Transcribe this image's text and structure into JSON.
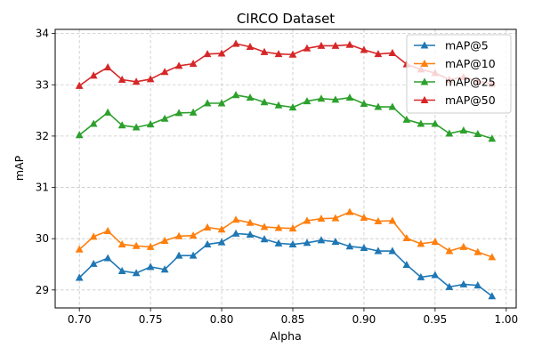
{
  "chart_data": {
    "type": "line",
    "title": "CIRCO Dataset",
    "xlabel": "Alpha",
    "ylabel": "mAP",
    "xlim": [
      0.683,
      1.007
    ],
    "ylim": [
      28.65,
      34.08
    ],
    "xticks": [
      0.7,
      0.75,
      0.8,
      0.85,
      0.9,
      0.95,
      1.0
    ],
    "xtick_labels": [
      "0.70",
      "0.75",
      "0.80",
      "0.85",
      "0.90",
      "0.95",
      "1.00"
    ],
    "yticks": [
      29,
      30,
      31,
      32,
      33,
      34
    ],
    "ytick_labels": [
      "29",
      "30",
      "31",
      "32",
      "33",
      "34"
    ],
    "grid": true,
    "legend_position": "top-right",
    "marker": "triangle",
    "x": [
      0.7,
      0.71,
      0.72,
      0.73,
      0.74,
      0.75,
      0.76,
      0.77,
      0.78,
      0.79,
      0.8,
      0.81,
      0.82,
      0.83,
      0.84,
      0.85,
      0.86,
      0.87,
      0.88,
      0.89,
      0.9,
      0.91,
      0.92,
      0.93,
      0.94,
      0.95,
      0.96,
      0.97,
      0.98,
      0.99
    ],
    "series": [
      {
        "name": "mAP@5",
        "color": "#1f77b4",
        "values": [
          29.24,
          29.51,
          29.62,
          29.37,
          29.33,
          29.45,
          29.4,
          29.67,
          29.67,
          29.89,
          29.93,
          30.1,
          30.08,
          29.99,
          29.91,
          29.89,
          29.92,
          29.97,
          29.94,
          29.85,
          29.82,
          29.76,
          29.76,
          29.49,
          29.25,
          29.29,
          29.06,
          29.11,
          29.09,
          28.88
        ]
      },
      {
        "name": "mAP@10",
        "color": "#ff7f0e",
        "values": [
          29.79,
          30.04,
          30.15,
          29.89,
          29.86,
          29.84,
          29.96,
          30.05,
          30.06,
          30.22,
          30.18,
          30.37,
          30.31,
          30.23,
          30.21,
          30.2,
          30.35,
          30.39,
          30.4,
          30.52,
          30.41,
          30.34,
          30.35,
          30.01,
          29.9,
          29.94,
          29.76,
          29.84,
          29.74,
          29.64
        ]
      },
      {
        "name": "mAP@25",
        "color": "#2ca02c",
        "values": [
          32.02,
          32.24,
          32.46,
          32.21,
          32.17,
          32.23,
          32.34,
          32.45,
          32.46,
          32.64,
          32.64,
          32.8,
          32.75,
          32.66,
          32.6,
          32.56,
          32.68,
          32.73,
          32.71,
          32.75,
          32.63,
          32.57,
          32.57,
          32.32,
          32.24,
          32.24,
          32.05,
          32.11,
          32.04,
          31.95
        ]
      },
      {
        "name": "mAP@50",
        "color": "#d62728",
        "values": [
          32.98,
          33.18,
          33.34,
          33.1,
          33.06,
          33.11,
          33.25,
          33.37,
          33.41,
          33.6,
          33.61,
          33.8,
          33.74,
          33.64,
          33.6,
          33.59,
          33.71,
          33.76,
          33.76,
          33.78,
          33.68,
          33.6,
          33.62,
          33.4,
          33.3,
          33.23,
          33.1,
          33.15,
          33.07,
          33.02
        ]
      }
    ]
  }
}
